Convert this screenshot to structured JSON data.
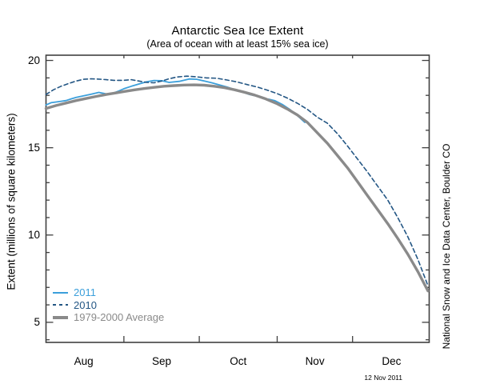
{
  "header": {
    "title": "Antarctic Sea Ice Extent",
    "subtitle": "(Area of ocean with at least 15% sea ice)"
  },
  "credit": "National Snow and Ice Data Center, Boulder CO",
  "date_stamp": "12 Nov 2011",
  "legend": {
    "items": [
      {
        "label": "2011",
        "color": "#3B9FDB",
        "style": "solid",
        "thickness": 2
      },
      {
        "label": "2010",
        "color": "#235684",
        "style": "dashed",
        "thickness": 2
      },
      {
        "label": "1979-2000 Average",
        "color": "#8A8A8A",
        "style": "solid",
        "thickness": 3.5
      }
    ]
  },
  "chart_data": {
    "type": "line",
    "title": "Antarctic Sea Ice Extent",
    "subtitle": "(Area of ocean with at least 15% sea ice)",
    "ylabel": "Extent (millions of square kilometers)",
    "xlabel": "",
    "x_unit": "days since Aug 1",
    "x_domain": [
      0,
      152.5
    ],
    "ylim": [
      3.85,
      20.3
    ],
    "y_ticks_major": [
      5,
      10,
      15,
      20
    ],
    "y_minor_step": 1,
    "month_labels": [
      "Aug",
      "Sep",
      "Oct",
      "Nov",
      "Dec"
    ],
    "month_label_days": [
      15,
      46,
      76.5,
      107,
      137.5
    ],
    "month_tick_days": [
      31,
      61,
      92,
      122
    ],
    "grid": false,
    "legend_position": "bottom-left-inside",
    "axis_color": "#404040",
    "series": [
      {
        "name": "2011",
        "color": "#3B9FDB",
        "style": "solid",
        "width": 1.8,
        "days": [
          0,
          2,
          4,
          6,
          8,
          10,
          12,
          15,
          18,
          21,
          24,
          27,
          29,
          31,
          34,
          37,
          40,
          43,
          46,
          49,
          53,
          57,
          60,
          63,
          66,
          69,
          72,
          75,
          78,
          81,
          84,
          87,
          89,
          91,
          94,
          97,
          100,
          103
        ],
        "values": [
          17.45,
          17.58,
          17.62,
          17.66,
          17.7,
          17.8,
          17.88,
          17.97,
          18.07,
          18.17,
          18.08,
          18.14,
          18.25,
          18.38,
          18.52,
          18.65,
          18.78,
          18.85,
          18.84,
          18.74,
          18.8,
          18.94,
          18.92,
          18.82,
          18.72,
          18.6,
          18.48,
          18.34,
          18.2,
          18.05,
          17.95,
          17.8,
          17.77,
          17.7,
          17.48,
          17.2,
          16.85,
          16.45
        ]
      },
      {
        "name": "2010",
        "color": "#235684",
        "style": "dashed",
        "width": 1.6,
        "days": [
          0,
          3,
          6,
          9,
          12,
          15,
          18,
          21,
          24,
          27,
          31,
          34,
          37,
          40,
          43,
          46,
          49,
          52,
          56,
          60,
          64,
          68,
          72,
          76,
          80,
          84,
          88,
          92,
          96,
          100,
          104,
          108,
          112,
          116,
          120,
          124,
          128,
          132,
          136,
          140,
          144,
          148,
          152
        ],
        "values": [
          18.05,
          18.32,
          18.52,
          18.68,
          18.82,
          18.92,
          18.95,
          18.93,
          18.9,
          18.86,
          18.86,
          18.9,
          18.82,
          18.74,
          18.72,
          18.82,
          18.95,
          19.05,
          19.1,
          19.06,
          19.0,
          18.98,
          18.88,
          18.77,
          18.62,
          18.48,
          18.3,
          18.1,
          17.85,
          17.55,
          17.2,
          16.75,
          16.4,
          15.8,
          15.1,
          14.35,
          13.6,
          12.8,
          12.0,
          11.0,
          9.9,
          8.6,
          7.1
        ]
      },
      {
        "name": "1979-2000 Average",
        "color": "#8A8A8A",
        "style": "solid",
        "width": 3.4,
        "days": [
          0,
          4,
          8,
          12,
          16,
          20,
          24,
          28,
          31,
          35,
          39,
          43,
          47,
          51,
          55,
          59,
          63,
          67,
          71,
          75,
          79,
          83,
          87,
          92,
          96,
          100,
          104,
          108,
          112,
          116,
          120,
          124,
          128,
          132,
          136,
          140,
          144,
          148,
          152
        ],
        "values": [
          17.25,
          17.42,
          17.56,
          17.7,
          17.82,
          17.94,
          18.05,
          18.14,
          18.22,
          18.31,
          18.39,
          18.46,
          18.52,
          18.56,
          18.59,
          18.6,
          18.58,
          18.52,
          18.44,
          18.32,
          18.18,
          18.02,
          17.82,
          17.52,
          17.22,
          16.88,
          16.45,
          15.85,
          15.25,
          14.55,
          13.85,
          13.05,
          12.25,
          11.45,
          10.65,
          9.8,
          8.9,
          7.9,
          6.8
        ]
      }
    ]
  }
}
